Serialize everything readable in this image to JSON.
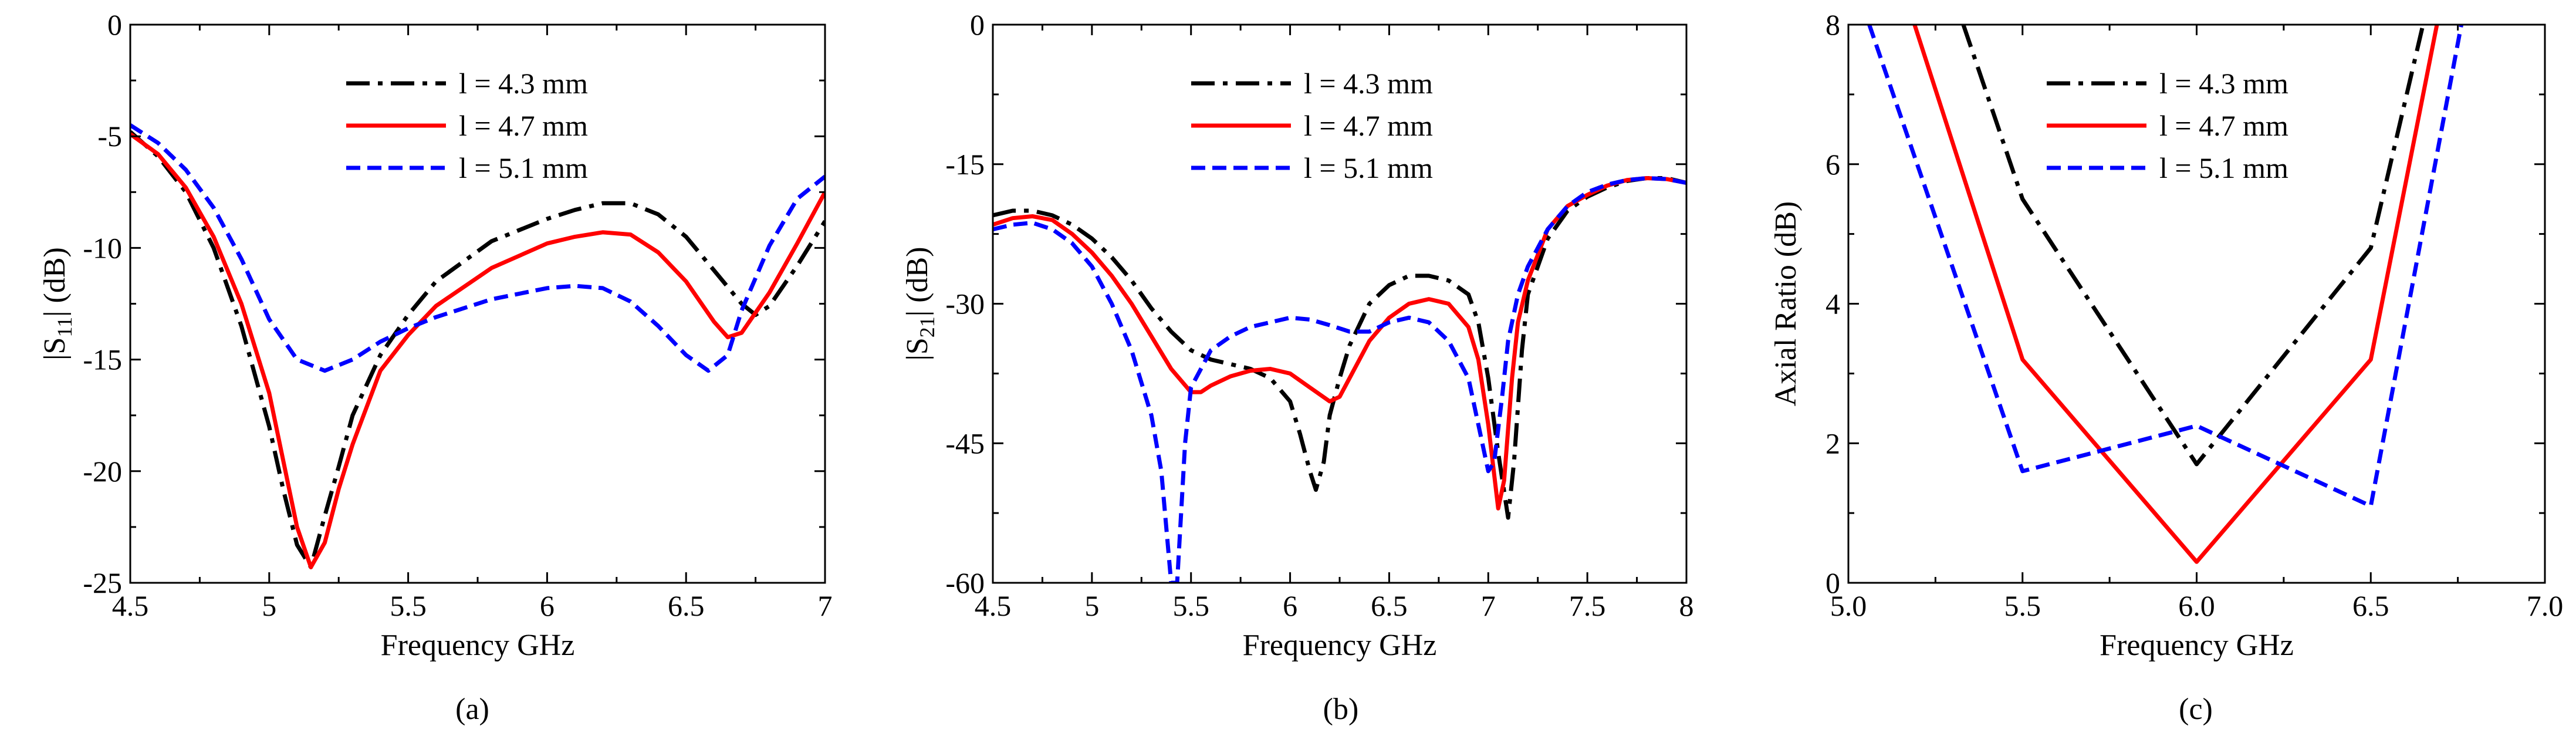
{
  "colors": {
    "l43": "#000000",
    "l47": "#ff0000",
    "l51": "#0000ff"
  },
  "chart_data": [
    {
      "type": "line",
      "panel_label": "(a)",
      "xlabel": "Frequency GHz",
      "ylabel": "|S11| (dB)",
      "xlim": [
        4.5,
        7
      ],
      "ylim": [
        -25,
        0
      ],
      "xticks": [
        4.5,
        5,
        5.5,
        6,
        6.5,
        7
      ],
      "xtick_labels": [
        "4.5",
        "5",
        "5.5",
        "6",
        "6.5",
        "7"
      ],
      "yticks": [
        -25,
        -20,
        -15,
        -10,
        -5,
        0
      ],
      "ytick_labels": [
        "-25",
        "-20",
        "-15",
        "-10",
        "-5",
        "0"
      ],
      "grid": false,
      "legend_position": "top-center",
      "series": [
        {
          "name": "l = 4.3 mm",
          "style": "dashdot",
          "color": "#000000",
          "points": [
            [
              4.5,
              -4.8
            ],
            [
              4.6,
              -5.9
            ],
            [
              4.7,
              -7.5
            ],
            [
              4.8,
              -10.0
            ],
            [
              4.9,
              -13.5
            ],
            [
              5.0,
              -18.0
            ],
            [
              5.05,
              -20.8
            ],
            [
              5.1,
              -23.3
            ],
            [
              5.15,
              -24.3
            ],
            [
              5.2,
              -22.0
            ],
            [
              5.25,
              -19.8
            ],
            [
              5.3,
              -17.5
            ],
            [
              5.4,
              -14.8
            ],
            [
              5.5,
              -13.0
            ],
            [
              5.6,
              -11.5
            ],
            [
              5.8,
              -9.7
            ],
            [
              6.0,
              -8.7
            ],
            [
              6.1,
              -8.3
            ],
            [
              6.2,
              -8.0
            ],
            [
              6.3,
              -8.0
            ],
            [
              6.4,
              -8.5
            ],
            [
              6.5,
              -9.5
            ],
            [
              6.6,
              -11.0
            ],
            [
              6.7,
              -12.5
            ],
            [
              6.75,
              -13.0
            ],
            [
              6.8,
              -12.6
            ],
            [
              6.9,
              -10.8
            ],
            [
              7.0,
              -8.8
            ]
          ]
        },
        {
          "name": "l = 4.7 mm",
          "style": "solid",
          "color": "#ff0000",
          "points": [
            [
              4.5,
              -4.9
            ],
            [
              4.6,
              -5.8
            ],
            [
              4.7,
              -7.3
            ],
            [
              4.8,
              -9.5
            ],
            [
              4.9,
              -12.5
            ],
            [
              5.0,
              -16.5
            ],
            [
              5.05,
              -19.5
            ],
            [
              5.1,
              -22.5
            ],
            [
              5.15,
              -24.3
            ],
            [
              5.2,
              -23.2
            ],
            [
              5.25,
              -20.8
            ],
            [
              5.3,
              -18.8
            ],
            [
              5.4,
              -15.5
            ],
            [
              5.5,
              -13.9
            ],
            [
              5.6,
              -12.6
            ],
            [
              5.8,
              -10.9
            ],
            [
              6.0,
              -9.8
            ],
            [
              6.1,
              -9.5
            ],
            [
              6.2,
              -9.3
            ],
            [
              6.3,
              -9.4
            ],
            [
              6.4,
              -10.2
            ],
            [
              6.5,
              -11.5
            ],
            [
              6.6,
              -13.3
            ],
            [
              6.65,
              -14.0
            ],
            [
              6.7,
              -13.8
            ],
            [
              6.8,
              -12.0
            ],
            [
              6.9,
              -9.8
            ],
            [
              7.0,
              -7.5
            ]
          ]
        },
        {
          "name": "l = 5.1 mm",
          "style": "dashed",
          "color": "#0000ff",
          "points": [
            [
              4.5,
              -4.5
            ],
            [
              4.6,
              -5.3
            ],
            [
              4.7,
              -6.5
            ],
            [
              4.8,
              -8.2
            ],
            [
              4.9,
              -10.5
            ],
            [
              5.0,
              -13.2
            ],
            [
              5.1,
              -15.0
            ],
            [
              5.2,
              -15.5
            ],
            [
              5.3,
              -15.0
            ],
            [
              5.4,
              -14.2
            ],
            [
              5.5,
              -13.6
            ],
            [
              5.6,
              -13.1
            ],
            [
              5.8,
              -12.3
            ],
            [
              6.0,
              -11.8
            ],
            [
              6.1,
              -11.7
            ],
            [
              6.2,
              -11.8
            ],
            [
              6.3,
              -12.4
            ],
            [
              6.4,
              -13.5
            ],
            [
              6.5,
              -14.8
            ],
            [
              6.58,
              -15.5
            ],
            [
              6.65,
              -14.8
            ],
            [
              6.7,
              -12.8
            ],
            [
              6.8,
              -9.9
            ],
            [
              6.9,
              -7.8
            ],
            [
              7.0,
              -6.8
            ]
          ]
        }
      ]
    },
    {
      "type": "line",
      "panel_label": "(b)",
      "xlabel": "Frequency GHz",
      "ylabel": "|S21| (dB)",
      "xlim": [
        4.5,
        8
      ],
      "ylim": [
        -60,
        0
      ],
      "xticks": [
        4.5,
        5,
        5.5,
        6,
        6.5,
        7,
        7.5,
        8
      ],
      "xtick_labels": [
        "4.5",
        "5",
        "5.5",
        "6",
        "6.5",
        "7",
        "7.5",
        "8"
      ],
      "yticks": [
        -60,
        -45,
        -30,
        -15,
        0
      ],
      "ytick_labels": [
        "-60",
        "-45",
        "-30",
        "-15",
        "0"
      ],
      "grid": false,
      "legend_position": "top-center",
      "series": [
        {
          "name": "l = 4.3 mm",
          "style": "dashdot",
          "color": "#000000",
          "points": [
            [
              4.5,
              -20.5
            ],
            [
              4.6,
              -20.0
            ],
            [
              4.7,
              -20.0
            ],
            [
              4.8,
              -20.5
            ],
            [
              4.9,
              -21.5
            ],
            [
              5.0,
              -23.0
            ],
            [
              5.1,
              -25.0
            ],
            [
              5.2,
              -27.5
            ],
            [
              5.3,
              -30.5
            ],
            [
              5.4,
              -33.0
            ],
            [
              5.5,
              -35.0
            ],
            [
              5.6,
              -36.0
            ],
            [
              5.7,
              -36.5
            ],
            [
              5.8,
              -37.0
            ],
            [
              5.9,
              -38.0
            ],
            [
              6.0,
              -40.5
            ],
            [
              6.05,
              -44.0
            ],
            [
              6.1,
              -48.0
            ],
            [
              6.13,
              -50.0
            ],
            [
              6.17,
              -47.0
            ],
            [
              6.2,
              -42.0
            ],
            [
              6.25,
              -38.0
            ],
            [
              6.3,
              -34.5
            ],
            [
              6.4,
              -30.0
            ],
            [
              6.5,
              -28.0
            ],
            [
              6.6,
              -27.0
            ],
            [
              6.7,
              -27.0
            ],
            [
              6.8,
              -27.5
            ],
            [
              6.9,
              -29.0
            ],
            [
              6.95,
              -32.0
            ],
            [
              7.0,
              -38.0
            ],
            [
              7.05,
              -46.0
            ],
            [
              7.1,
              -53.0
            ],
            [
              7.13,
              -47.0
            ],
            [
              7.17,
              -35.0
            ],
            [
              7.2,
              -29.0
            ],
            [
              7.3,
              -23.0
            ],
            [
              7.4,
              -20.0
            ],
            [
              7.5,
              -18.5
            ],
            [
              7.6,
              -17.5
            ],
            [
              7.7,
              -16.8
            ],
            [
              7.8,
              -16.5
            ],
            [
              7.9,
              -16.5
            ],
            [
              8.0,
              -17.0
            ]
          ]
        },
        {
          "name": "l = 4.7 mm",
          "style": "solid",
          "color": "#ff0000",
          "points": [
            [
              4.5,
              -21.5
            ],
            [
              4.6,
              -20.8
            ],
            [
              4.7,
              -20.6
            ],
            [
              4.8,
              -21.0
            ],
            [
              4.9,
              -22.5
            ],
            [
              5.0,
              -24.5
            ],
            [
              5.1,
              -27.0
            ],
            [
              5.2,
              -30.0
            ],
            [
              5.3,
              -33.5
            ],
            [
              5.4,
              -37.0
            ],
            [
              5.5,
              -39.5
            ],
            [
              5.55,
              -39.5
            ],
            [
              5.6,
              -38.8
            ],
            [
              5.7,
              -37.8
            ],
            [
              5.8,
              -37.2
            ],
            [
              5.9,
              -37.0
            ],
            [
              6.0,
              -37.5
            ],
            [
              6.1,
              -39.0
            ],
            [
              6.2,
              -40.5
            ],
            [
              6.25,
              -40.0
            ],
            [
              6.3,
              -38.0
            ],
            [
              6.4,
              -34.0
            ],
            [
              6.5,
              -31.5
            ],
            [
              6.6,
              -30.0
            ],
            [
              6.7,
              -29.5
            ],
            [
              6.8,
              -30.0
            ],
            [
              6.9,
              -32.5
            ],
            [
              6.95,
              -36.0
            ],
            [
              7.0,
              -43.0
            ],
            [
              7.05,
              -52.0
            ],
            [
              7.08,
              -49.0
            ],
            [
              7.12,
              -38.0
            ],
            [
              7.15,
              -32.0
            ],
            [
              7.2,
              -27.5
            ],
            [
              7.3,
              -22.0
            ],
            [
              7.4,
              -19.5
            ],
            [
              7.5,
              -18.3
            ],
            [
              7.6,
              -17.3
            ],
            [
              7.7,
              -16.7
            ],
            [
              7.8,
              -16.5
            ],
            [
              7.9,
              -16.6
            ],
            [
              8.0,
              -17.0
            ]
          ]
        },
        {
          "name": "l = 5.1 mm",
          "style": "dashed",
          "color": "#0000ff",
          "points": [
            [
              4.5,
              -22.0
            ],
            [
              4.6,
              -21.5
            ],
            [
              4.7,
              -21.3
            ],
            [
              4.8,
              -22.0
            ],
            [
              4.9,
              -23.5
            ],
            [
              5.0,
              -26.0
            ],
            [
              5.1,
              -30.0
            ],
            [
              5.2,
              -35.0
            ],
            [
              5.3,
              -42.0
            ],
            [
              5.35,
              -48.0
            ],
            [
              5.4,
              -60.0
            ],
            [
              5.43,
              -60.0
            ],
            [
              5.47,
              -45.0
            ],
            [
              5.5,
              -39.0
            ],
            [
              5.6,
              -35.0
            ],
            [
              5.7,
              -33.5
            ],
            [
              5.8,
              -32.5
            ],
            [
              5.9,
              -32.0
            ],
            [
              6.0,
              -31.5
            ],
            [
              6.1,
              -31.7
            ],
            [
              6.2,
              -32.3
            ],
            [
              6.3,
              -33.0
            ],
            [
              6.4,
              -33.0
            ],
            [
              6.5,
              -32.0
            ],
            [
              6.6,
              -31.5
            ],
            [
              6.7,
              -32.0
            ],
            [
              6.8,
              -34.0
            ],
            [
              6.9,
              -38.0
            ],
            [
              6.95,
              -43.0
            ],
            [
              7.0,
              -48.0
            ],
            [
              7.03,
              -47.0
            ],
            [
              7.07,
              -40.0
            ],
            [
              7.1,
              -34.0
            ],
            [
              7.15,
              -29.0
            ],
            [
              7.2,
              -26.0
            ],
            [
              7.3,
              -22.0
            ],
            [
              7.4,
              -19.5
            ],
            [
              7.5,
              -18.0
            ],
            [
              7.6,
              -17.2
            ],
            [
              7.7,
              -16.7
            ],
            [
              7.8,
              -16.5
            ],
            [
              7.9,
              -16.6
            ],
            [
              8.0,
              -17.0
            ]
          ]
        }
      ]
    },
    {
      "type": "line",
      "panel_label": "(c)",
      "xlabel": "Frequency GHz",
      "ylabel": "Axial Ratio (dB)",
      "xlim": [
        5.0,
        7.0
      ],
      "ylim": [
        0,
        8
      ],
      "xticks": [
        5.0,
        5.5,
        6.0,
        6.5,
        7.0
      ],
      "xtick_labels": [
        "5.0",
        "5.5",
        "6.0",
        "6.5",
        "7.0"
      ],
      "yticks": [
        0,
        2,
        4,
        6,
        8
      ],
      "ytick_labels": [
        "0",
        "2",
        "4",
        "6",
        "8"
      ],
      "grid": false,
      "legend_position": "top-center",
      "series": [
        {
          "name": "l = 4.3 mm",
          "style": "dashdot",
          "color": "#000000",
          "points": [
            [
              5.33,
              8.0
            ],
            [
              5.5,
              5.5
            ],
            [
              6.0,
              1.7
            ],
            [
              6.5,
              4.8
            ],
            [
              6.65,
              8.0
            ]
          ]
        },
        {
          "name": "l = 4.7 mm",
          "style": "solid",
          "color": "#ff0000",
          "points": [
            [
              5.19,
              8.0
            ],
            [
              5.5,
              3.2
            ],
            [
              6.0,
              0.3
            ],
            [
              6.5,
              3.2
            ],
            [
              6.69,
              8.0
            ]
          ]
        },
        {
          "name": "l = 5.1 mm",
          "style": "dashed",
          "color": "#0000ff",
          "points": [
            [
              5.06,
              8.0
            ],
            [
              5.5,
              1.6
            ],
            [
              6.0,
              2.25
            ],
            [
              6.5,
              1.1
            ],
            [
              6.76,
              8.0
            ]
          ]
        }
      ]
    }
  ]
}
